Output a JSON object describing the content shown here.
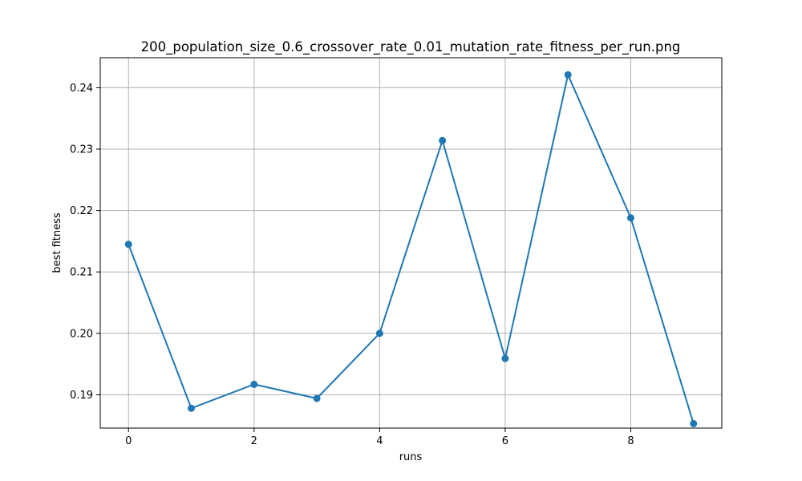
{
  "chart_data": {
    "type": "line",
    "title": "200_population_size_0.6_crossover_rate_0.01_mutation_rate_fitness_per_run.png",
    "xlabel": "runs",
    "ylabel": "best fitness",
    "x": [
      0,
      1,
      2,
      3,
      4,
      5,
      6,
      7,
      8,
      9
    ],
    "series": [
      {
        "name": "best fitness",
        "values": [
          0.2145,
          0.1878,
          0.1917,
          0.1894,
          0.2,
          0.2314,
          0.1959,
          0.2421,
          0.2188,
          0.1853
        ],
        "color": "#1f77b4",
        "marker": "circle"
      }
    ],
    "xlim": [
      -0.45,
      9.45
    ],
    "ylim": [
      0.18457,
      0.24488
    ],
    "xticks": [
      0,
      2,
      4,
      6,
      8
    ],
    "xtick_labels": [
      "0",
      "2",
      "4",
      "6",
      "8"
    ],
    "yticks": [
      0.19,
      0.2,
      0.21,
      0.22,
      0.23,
      0.24
    ],
    "ytick_labels": [
      "0.19",
      "0.20",
      "0.21",
      "0.22",
      "0.23",
      "0.24"
    ],
    "grid": true,
    "legend": "none"
  }
}
